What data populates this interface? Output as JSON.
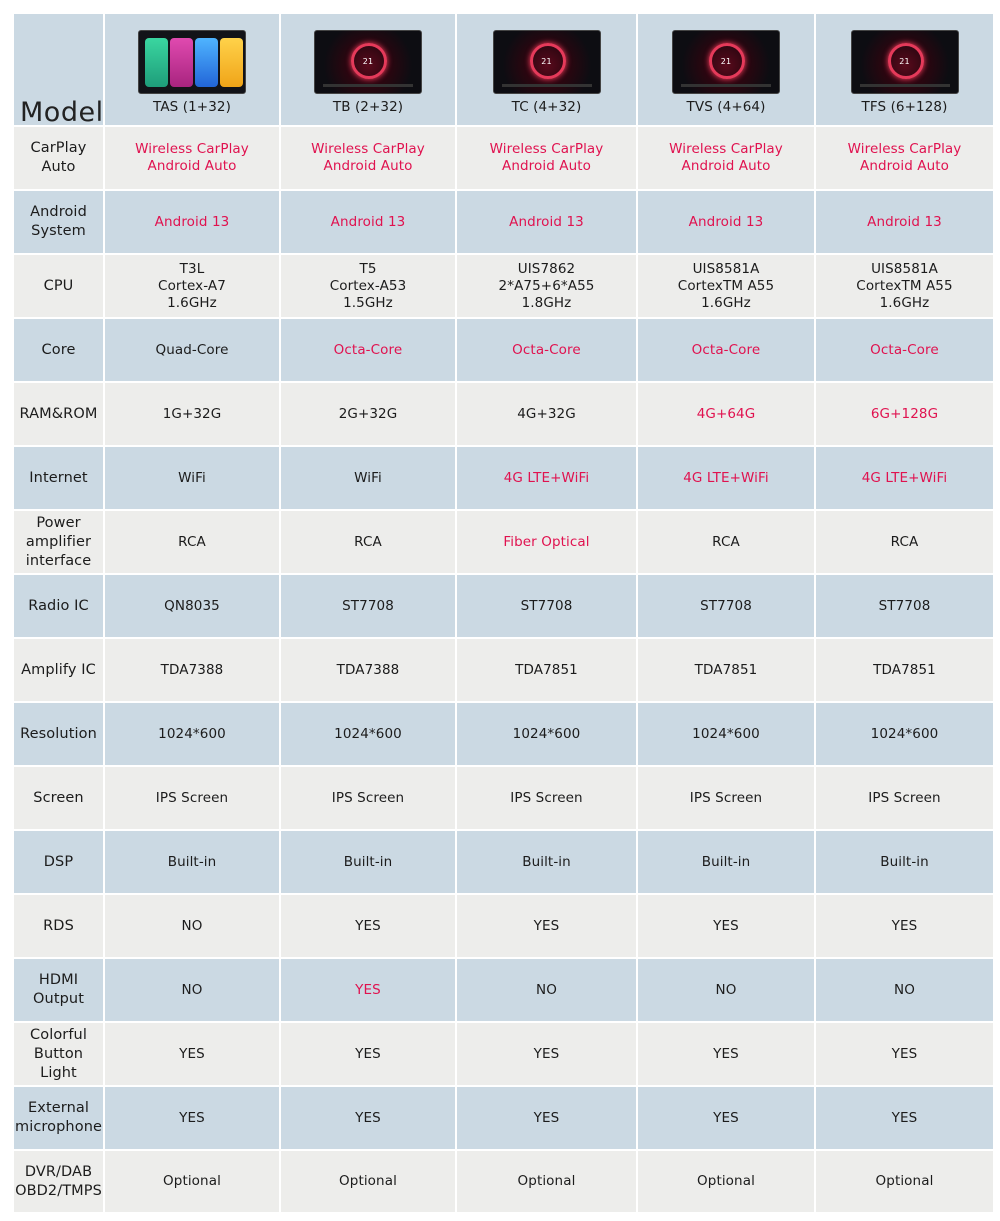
{
  "header": {
    "model_label": "Model",
    "products": [
      {
        "name": "TAS (1+32)",
        "thumbnail": "home-screen",
        "dash_value": ""
      },
      {
        "name": "TB (2+32)",
        "thumbnail": "dashboard-screen",
        "dash_value": "21"
      },
      {
        "name": "TC (4+32)",
        "thumbnail": "dashboard-screen",
        "dash_value": "21"
      },
      {
        "name": "TVS (4+64)",
        "thumbnail": "dashboard-screen",
        "dash_value": "21"
      },
      {
        "name": "TFS (6+128)",
        "thumbnail": "dashboard-screen",
        "dash_value": "21"
      }
    ]
  },
  "colors": {
    "highlight": "#e0124f",
    "blue_row": "#cbd9e3",
    "gray_row": "#ededeb"
  },
  "rows": [
    {
      "label": "CarPlay\nAuto",
      "values": [
        {
          "text": "Wireless CarPlay\nAndroid Auto",
          "hl": true
        },
        {
          "text": "Wireless CarPlay\nAndroid Auto",
          "hl": true
        },
        {
          "text": "Wireless CarPlay\nAndroid Auto",
          "hl": true
        },
        {
          "text": "Wireless CarPlay\nAndroid Auto",
          "hl": true
        },
        {
          "text": "Wireless CarPlay\nAndroid Auto",
          "hl": true
        }
      ]
    },
    {
      "label": "Android\nSystem",
      "values": [
        {
          "text": "Android 13",
          "hl": true
        },
        {
          "text": "Android 13",
          "hl": true
        },
        {
          "text": "Android 13",
          "hl": true
        },
        {
          "text": "Android 13",
          "hl": true
        },
        {
          "text": "Android 13",
          "hl": true
        }
      ]
    },
    {
      "label": "CPU",
      "values": [
        {
          "text": "T3L\nCortex-A7\n1.6GHz",
          "hl": false
        },
        {
          "text": "T5\nCortex-A53\n1.5GHz",
          "hl": false
        },
        {
          "text": "UIS7862\n2*A75+6*A55\n1.8GHz",
          "hl": false
        },
        {
          "text": "UIS8581A\nCortexTM A55\n1.6GHz",
          "hl": false
        },
        {
          "text": "UIS8581A\nCortexTM A55\n1.6GHz",
          "hl": false
        }
      ]
    },
    {
      "label": "Core",
      "values": [
        {
          "text": "Quad-Core",
          "hl": false
        },
        {
          "text": "Octa-Core",
          "hl": true
        },
        {
          "text": "Octa-Core",
          "hl": true
        },
        {
          "text": "Octa-Core",
          "hl": true
        },
        {
          "text": "Octa-Core",
          "hl": true
        }
      ]
    },
    {
      "label": "RAM&ROM",
      "values": [
        {
          "text": "1G+32G",
          "hl": false
        },
        {
          "text": "2G+32G",
          "hl": false
        },
        {
          "text": "4G+32G",
          "hl": false
        },
        {
          "text": "4G+64G",
          "hl": true
        },
        {
          "text": "6G+128G",
          "hl": true
        }
      ]
    },
    {
      "label": "Internet",
      "values": [
        {
          "text": "WiFi",
          "hl": false
        },
        {
          "text": "WiFi",
          "hl": false
        },
        {
          "text": "4G LTE+WiFi",
          "hl": true
        },
        {
          "text": "4G LTE+WiFi",
          "hl": true
        },
        {
          "text": "4G LTE+WiFi",
          "hl": true
        }
      ]
    },
    {
      "label": "Power\namplifier\ninterface",
      "values": [
        {
          "text": "RCA",
          "hl": false
        },
        {
          "text": "RCA",
          "hl": false
        },
        {
          "text": "Fiber Optical",
          "hl": true
        },
        {
          "text": "RCA",
          "hl": false
        },
        {
          "text": "RCA",
          "hl": false
        }
      ]
    },
    {
      "label": "Radio IC",
      "values": [
        {
          "text": "QN8035",
          "hl": false
        },
        {
          "text": "ST7708",
          "hl": false
        },
        {
          "text": "ST7708",
          "hl": false
        },
        {
          "text": "ST7708",
          "hl": false
        },
        {
          "text": "ST7708",
          "hl": false
        }
      ]
    },
    {
      "label": "Amplify IC",
      "values": [
        {
          "text": "TDA7388",
          "hl": false
        },
        {
          "text": "TDA7388",
          "hl": false
        },
        {
          "text": "TDA7851",
          "hl": false
        },
        {
          "text": "TDA7851",
          "hl": false
        },
        {
          "text": "TDA7851",
          "hl": false
        }
      ]
    },
    {
      "label": "Resolution",
      "values": [
        {
          "text": "1024*600",
          "hl": false
        },
        {
          "text": "1024*600",
          "hl": false
        },
        {
          "text": "1024*600",
          "hl": false
        },
        {
          "text": "1024*600",
          "hl": false
        },
        {
          "text": "1024*600",
          "hl": false
        }
      ]
    },
    {
      "label": "Screen",
      "values": [
        {
          "text": "IPS Screen",
          "hl": false
        },
        {
          "text": "IPS Screen",
          "hl": false
        },
        {
          "text": "IPS Screen",
          "hl": false
        },
        {
          "text": "IPS Screen",
          "hl": false
        },
        {
          "text": "IPS Screen",
          "hl": false
        }
      ]
    },
    {
      "label": "DSP",
      "values": [
        {
          "text": "Built-in",
          "hl": false
        },
        {
          "text": "Built-in",
          "hl": false
        },
        {
          "text": "Built-in",
          "hl": false
        },
        {
          "text": "Built-in",
          "hl": false
        },
        {
          "text": "Built-in",
          "hl": false
        }
      ]
    },
    {
      "label": "RDS",
      "values": [
        {
          "text": "NO",
          "hl": false
        },
        {
          "text": "YES",
          "hl": false
        },
        {
          "text": "YES",
          "hl": false
        },
        {
          "text": "YES",
          "hl": false
        },
        {
          "text": "YES",
          "hl": false
        }
      ]
    },
    {
      "label": "HDMI\nOutput",
      "values": [
        {
          "text": "NO",
          "hl": false
        },
        {
          "text": "YES",
          "hl": true
        },
        {
          "text": "NO",
          "hl": false
        },
        {
          "text": "NO",
          "hl": false
        },
        {
          "text": "NO",
          "hl": false
        }
      ]
    },
    {
      "label": "Colorful\nButton Light",
      "values": [
        {
          "text": "YES",
          "hl": false
        },
        {
          "text": "YES",
          "hl": false
        },
        {
          "text": "YES",
          "hl": false
        },
        {
          "text": "YES",
          "hl": false
        },
        {
          "text": "YES",
          "hl": false
        }
      ]
    },
    {
      "label": "External\nmicrophone",
      "values": [
        {
          "text": "YES",
          "hl": false
        },
        {
          "text": "YES",
          "hl": false
        },
        {
          "text": "YES",
          "hl": false
        },
        {
          "text": "YES",
          "hl": false
        },
        {
          "text": "YES",
          "hl": false
        }
      ]
    },
    {
      "label": "DVR/DAB\nOBD2/TMPS",
      "values": [
        {
          "text": "Optional",
          "hl": false
        },
        {
          "text": "Optional",
          "hl": false
        },
        {
          "text": "Optional",
          "hl": false
        },
        {
          "text": "Optional",
          "hl": false
        },
        {
          "text": "Optional",
          "hl": false
        }
      ]
    }
  ]
}
